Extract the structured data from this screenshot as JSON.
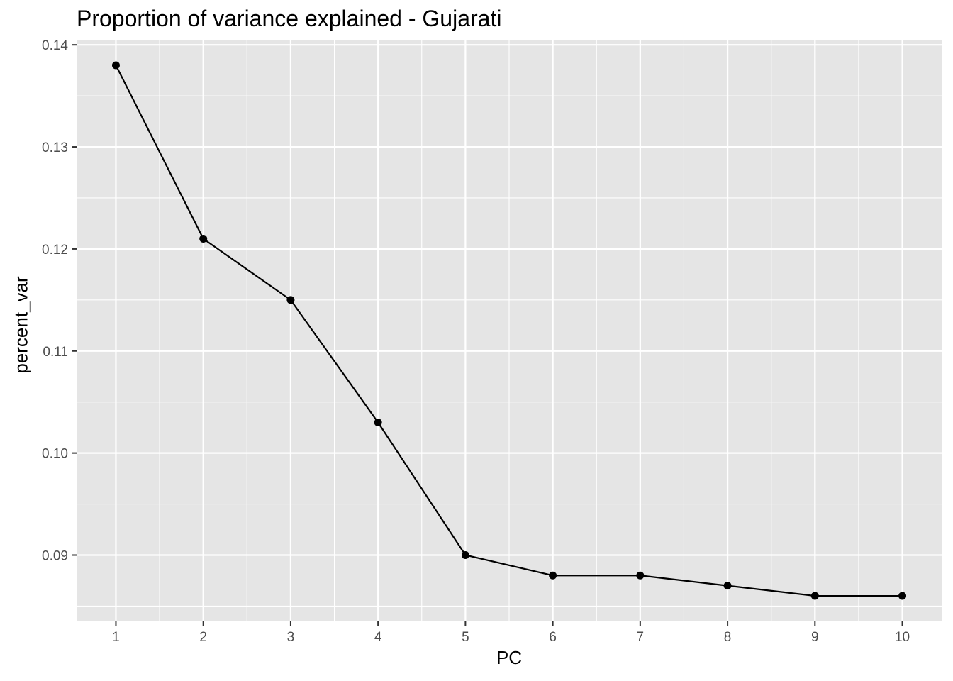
{
  "chart_data": {
    "type": "line",
    "title": "Proportion of variance explained - Gujarati",
    "xlabel": "PC",
    "ylabel": "percent_var",
    "x": [
      1,
      2,
      3,
      4,
      5,
      6,
      7,
      8,
      9,
      10
    ],
    "y": [
      0.138,
      0.121,
      0.115,
      0.103,
      0.09,
      0.088,
      0.088,
      0.087,
      0.086,
      0.086
    ],
    "x_ticks": [
      "1",
      "2",
      "3",
      "4",
      "5",
      "6",
      "7",
      "8",
      "9",
      "10"
    ],
    "y_ticks": [
      "0.09",
      "0.10",
      "0.11",
      "0.12",
      "0.13",
      "0.14"
    ],
    "xlim": [
      0.55,
      10.45
    ],
    "ylim": [
      0.0835,
      0.1405
    ],
    "grid": true,
    "markers": true,
    "colors": {
      "panel": "#e5e5e5",
      "grid": "#ffffff",
      "line": "#000000",
      "tick_text": "#4d4d4d",
      "tick_mark": "#333333"
    }
  }
}
